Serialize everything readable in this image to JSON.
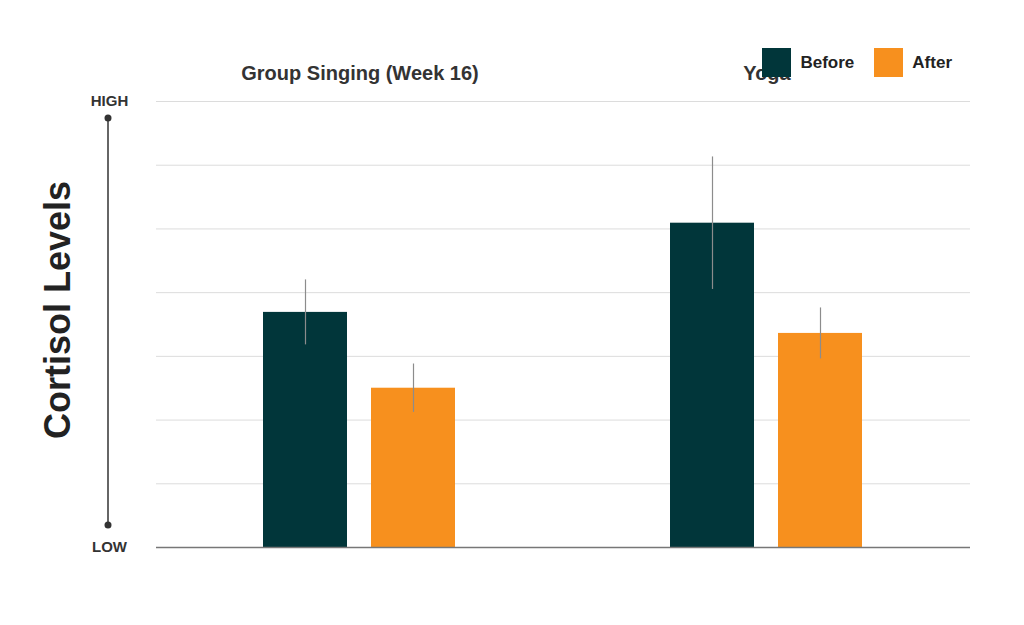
{
  "chart_data": {
    "type": "bar",
    "y_label": "Cortisol Levels",
    "categories": [
      "Group Singing (Week 16)",
      "Yoga"
    ],
    "series": [
      {
        "name": "Before",
        "color": "#01363a",
        "values": [
          3.69,
          5.09
        ],
        "errors": [
          0.51,
          1.04
        ]
      },
      {
        "name": "After",
        "color": "#f7901e",
        "values": [
          2.5,
          3.36
        ],
        "errors": [
          0.38,
          0.4
        ]
      }
    ],
    "ylim": [
      0,
      7
    ],
    "yticks": [
      {
        "value": 0,
        "label": "LOW"
      },
      {
        "value": 1,
        "label": null
      },
      {
        "value": 2,
        "label": null
      },
      {
        "value": 3,
        "label": null
      },
      {
        "value": 4,
        "label": null
      },
      {
        "value": 5,
        "label": null
      },
      {
        "value": 6,
        "label": null
      },
      {
        "value": 7,
        "label": "HIGH"
      }
    ],
    "grid": true,
    "legend": "top-right"
  }
}
